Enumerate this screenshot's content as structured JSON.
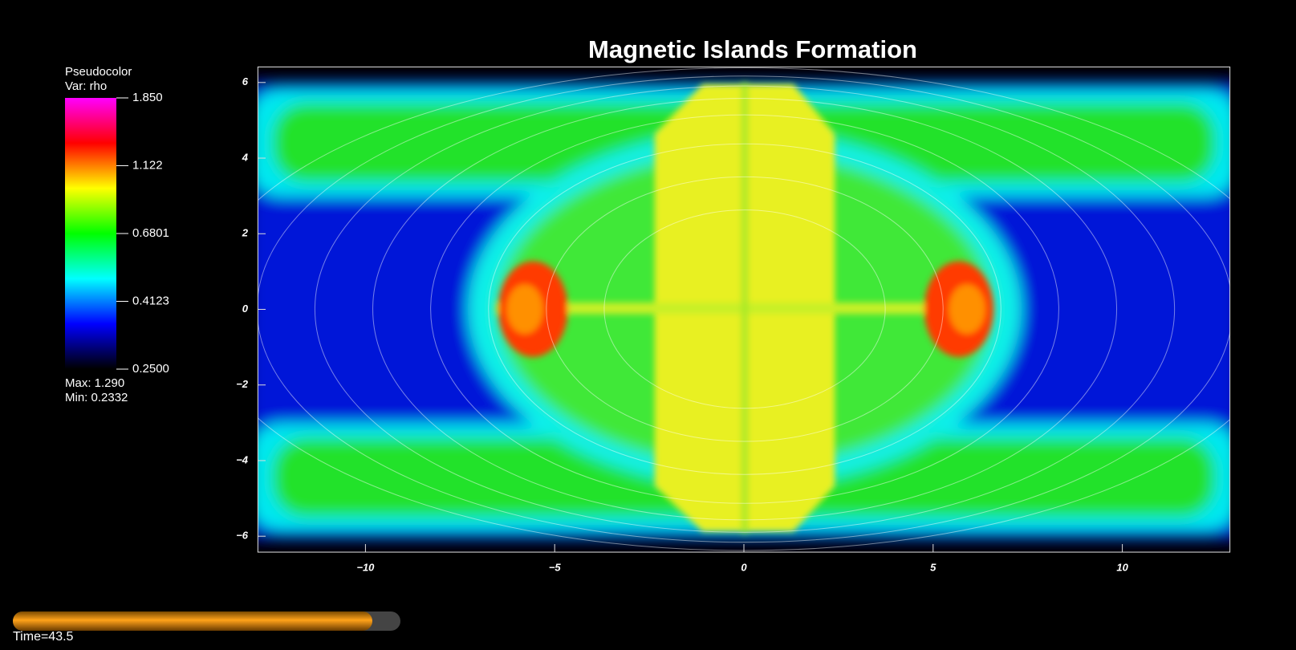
{
  "chart_data": {
    "type": "pseudocolor",
    "title": "Magnetic Islands Formation",
    "xlim": [
      -12.85,
      12.85
    ],
    "ylim": [
      -6.42,
      6.42
    ],
    "xticks": [
      {
        "value": -10,
        "label": "−10"
      },
      {
        "value": -5,
        "label": "−5"
      },
      0,
      5,
      10
    ],
    "yticks": [
      {
        "value": -6,
        "label": "−6"
      },
      {
        "value": -4,
        "label": "−4"
      },
      {
        "value": -2,
        "label": "−2"
      },
      0,
      2,
      4,
      6
    ],
    "colorbar": {
      "plot_name": "Pseudocolor",
      "variable": "Var: rho",
      "scale": "log",
      "lim": [
        0.25,
        1.85
      ],
      "ticks": [
        {
          "value": 1.85,
          "label": "1.850"
        },
        {
          "value": 1.122,
          "label": "1.122"
        },
        {
          "value": 0.6801,
          "label": "0.6801"
        },
        {
          "value": 0.4123,
          "label": "0.4123"
        },
        {
          "value": 0.25,
          "label": "0.2500"
        }
      ],
      "colors": [
        "#000000",
        "#0000ff",
        "#00ffff",
        "#00ff00",
        "#ffff00",
        "#ff0000",
        "#ff00ff"
      ],
      "max_label": "Max:  1.290",
      "min_label": "Min:  0.2332"
    },
    "time_label": "Time=43.5"
  }
}
